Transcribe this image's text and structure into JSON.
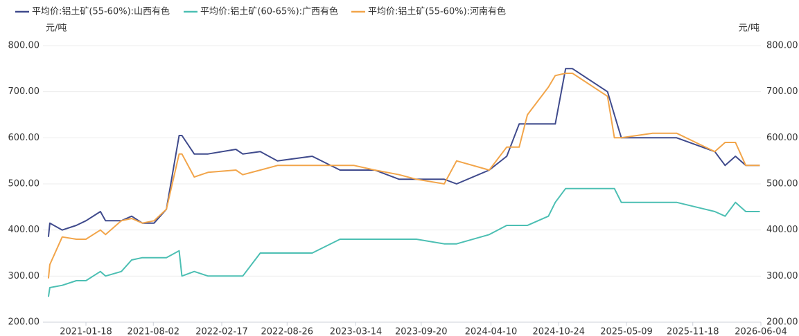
{
  "chart_data": {
    "type": "line",
    "y_label": "元/吨",
    "y2_label": "元/吨",
    "x": [
      "2020-10-01",
      "2020-10-05",
      "2020-11-10",
      "2020-12-21",
      "2021-01-18",
      "2021-03-01",
      "2021-03-16",
      "2021-05-01",
      "2021-05-31",
      "2021-07-01",
      "2021-08-04",
      "2021-09-09",
      "2021-10-16",
      "2021-10-24",
      "2021-11-29",
      "2022-01-08",
      "2022-03-30",
      "2022-04-19",
      "2022-06-09",
      "2022-07-29",
      "2022-11-07",
      "2023-01-27",
      "2023-03-09",
      "2023-05-08",
      "2023-07-18",
      "2023-09-06",
      "2023-11-26",
      "2024-01-01",
      "2024-04-05",
      "2024-05-26",
      "2024-07-01",
      "2024-07-25",
      "2024-09-24",
      "2024-10-14",
      "2024-11-13",
      "2024-12-03",
      "2025-03-15",
      "2025-04-04",
      "2025-04-24",
      "2025-07-24",
      "2025-10-02",
      "2026-01-21",
      "2026-02-20",
      "2026-03-22",
      "2026-04-21",
      "2026-06-01"
    ],
    "series": [
      {
        "name": "平均价:铝土矿(55-60%):山西有色",
        "color": "#3f4a8c",
        "values": [
          385,
          415,
          400,
          410,
          420,
          440,
          420,
          420,
          430,
          415,
          415,
          445,
          605,
          605,
          565,
          565,
          575,
          565,
          570,
          550,
          560,
          530,
          530,
          530,
          510,
          510,
          510,
          500,
          530,
          560,
          630,
          630,
          630,
          630,
          750,
          750,
          700,
          650,
          600,
          600,
          600,
          570,
          540,
          560,
          540,
          540
        ]
      },
      {
        "name": "平均价:铝土矿(60-65%):广西有色",
        "color": "#4cbfb3",
        "values": [
          255,
          275,
          280,
          290,
          290,
          310,
          300,
          310,
          335,
          340,
          340,
          340,
          355,
          300,
          310,
          300,
          300,
          300,
          350,
          350,
          350,
          380,
          380,
          380,
          380,
          380,
          370,
          370,
          390,
          410,
          410,
          410,
          430,
          460,
          490,
          490,
          490,
          490,
          460,
          460,
          460,
          440,
          430,
          460,
          440,
          440
        ]
      },
      {
        "name": "平均价:铝土矿(55-60%):河南有色",
        "color": "#f2a54a",
        "values": [
          295,
          325,
          385,
          380,
          380,
          400,
          390,
          420,
          425,
          415,
          420,
          445,
          565,
          565,
          515,
          525,
          530,
          520,
          530,
          540,
          540,
          540,
          540,
          530,
          520,
          510,
          500,
          550,
          530,
          580,
          580,
          650,
          710,
          735,
          740,
          740,
          690,
          600,
          600,
          610,
          610,
          570,
          590,
          590,
          540,
          540
        ]
      }
    ],
    "xlim": [
      "2020-09-15",
      "2026-06-04"
    ],
    "xticks": [
      "2021-01-18",
      "2021-08-02",
      "2022-02-17",
      "2022-08-26",
      "2023-03-14",
      "2023-09-20",
      "2024-04-10",
      "2024-10-24",
      "2025-05-09",
      "2025-11-18",
      "2026-06-04"
    ],
    "ylim": [
      200,
      800
    ],
    "yticks": [
      {
        "value": 200,
        "label": "200.00"
      },
      {
        "value": 300,
        "label": "300.00"
      },
      {
        "value": 400,
        "label": "400.00"
      },
      {
        "value": 500,
        "label": "500.00"
      },
      {
        "value": 600,
        "label": "600.00"
      },
      {
        "value": 700,
        "label": "700.00"
      },
      {
        "value": 800,
        "label": "800.00"
      }
    ],
    "y2lim": [
      200,
      800
    ],
    "y2ticks": [
      {
        "value": 200,
        "label": "200.00"
      },
      {
        "value": 300,
        "label": "300.00"
      },
      {
        "value": 400,
        "label": "400.00"
      },
      {
        "value": 500,
        "label": "500.00"
      },
      {
        "value": 600,
        "label": "600.00"
      },
      {
        "value": 700,
        "label": "700.00"
      },
      {
        "value": 800,
        "label": "800.00"
      }
    ],
    "grid": true
  }
}
